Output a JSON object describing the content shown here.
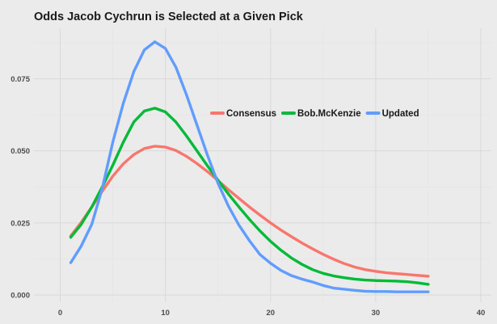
{
  "chart_data": {
    "type": "line",
    "title": "Odds Jacob Cychrun is Selected at a Given Pick",
    "xlabel": "",
    "ylabel": "",
    "xlim": [
      -2.5,
      41
    ],
    "ylim": [
      -0.0025,
      0.0925
    ],
    "x_ticks": [
      0,
      10,
      20,
      30,
      40
    ],
    "y_ticks": [
      0.0,
      0.025,
      0.05,
      0.075
    ],
    "x_tick_labels": [
      "0",
      "10",
      "20",
      "30",
      "40"
    ],
    "y_tick_labels": [
      "0.000",
      "0.025",
      "0.050",
      "0.075"
    ],
    "grid": true,
    "legend_position": "center-right",
    "x": [
      1,
      2,
      3,
      4,
      5,
      6,
      7,
      8,
      9,
      10,
      11,
      12,
      13,
      14,
      15,
      16,
      17,
      18,
      19,
      20,
      21,
      22,
      23,
      24,
      25,
      26,
      27,
      28,
      29,
      30,
      31,
      32,
      33,
      34,
      35
    ],
    "series": [
      {
        "name": "Consensus",
        "color": "#f8766d",
        "values": [
          0.0205,
          0.0252,
          0.0305,
          0.036,
          0.0412,
          0.0455,
          0.0487,
          0.0508,
          0.0516,
          0.0513,
          0.0501,
          0.0481,
          0.0456,
          0.0428,
          0.0397,
          0.0365,
          0.0335,
          0.0305,
          0.0277,
          0.025,
          0.0225,
          0.0202,
          0.018,
          0.016,
          0.0141,
          0.0124,
          0.0109,
          0.0097,
          0.0088,
          0.0082,
          0.0077,
          0.0074,
          0.0071,
          0.0068,
          0.0065
        ]
      },
      {
        "name": "Bob.McKenzie",
        "color": "#00ba38",
        "values": [
          0.02,
          0.0245,
          0.0305,
          0.0375,
          0.045,
          0.053,
          0.06,
          0.0638,
          0.0648,
          0.0635,
          0.06,
          0.0552,
          0.05,
          0.0448,
          0.0398,
          0.035,
          0.0305,
          0.0262,
          0.0222,
          0.0186,
          0.0155,
          0.0128,
          0.0106,
          0.0088,
          0.0075,
          0.0066,
          0.006,
          0.0055,
          0.0052,
          0.005,
          0.0049,
          0.0048,
          0.0046,
          0.0042,
          0.0037
        ]
      },
      {
        "name": "Updated",
        "color": "#619cff",
        "values": [
          0.0112,
          0.017,
          0.0245,
          0.037,
          0.053,
          0.0665,
          0.0775,
          0.085,
          0.0878,
          0.0855,
          0.079,
          0.0695,
          0.059,
          0.0485,
          0.0388,
          0.0308,
          0.0242,
          0.0188,
          0.014,
          0.011,
          0.0085,
          0.0067,
          0.0055,
          0.0045,
          0.0033,
          0.0024,
          0.002,
          0.0016,
          0.0013,
          0.0012,
          0.0012,
          0.0011,
          0.0011,
          0.0011,
          0.0011
        ]
      }
    ]
  }
}
